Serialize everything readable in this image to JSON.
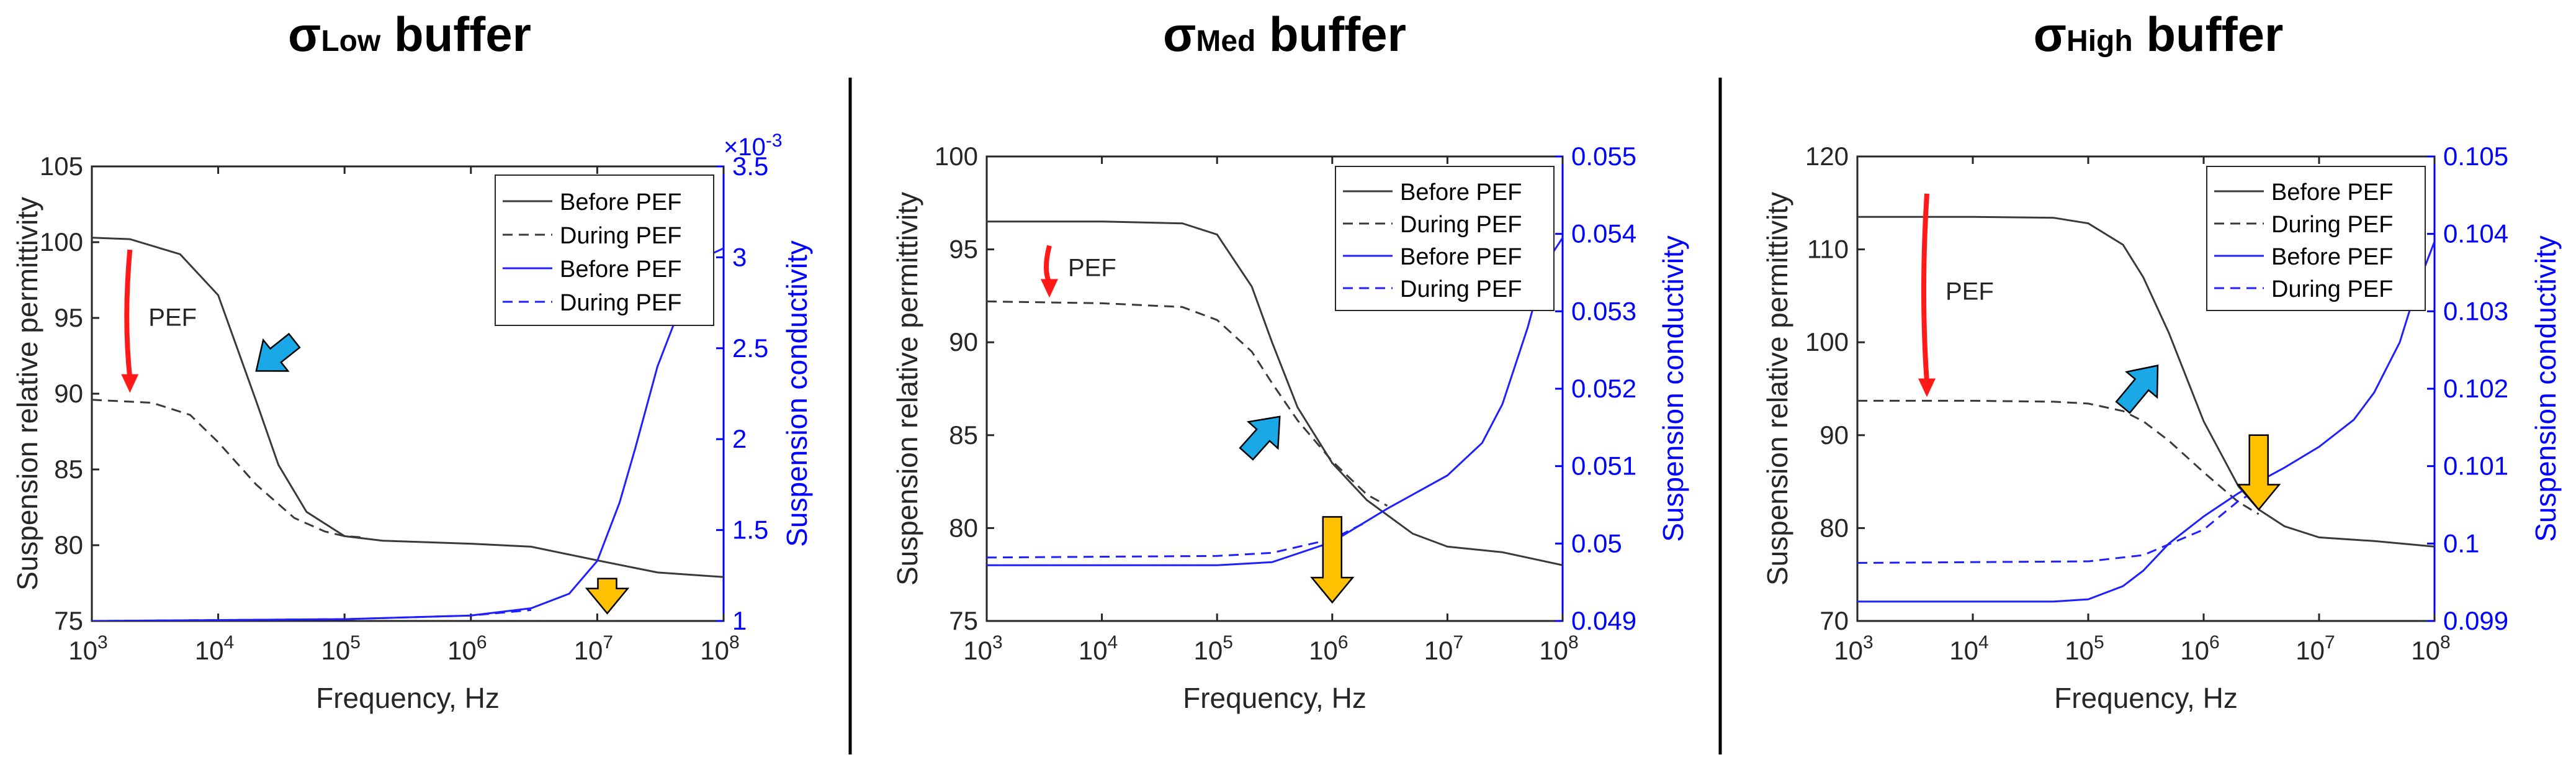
{
  "colors": {
    "before": "#3a3a3a",
    "during": "#3a3a3a",
    "cond": "#1f1fff",
    "red_arrow": "#ff1a1a",
    "blue_arrow": "#1aa8e6",
    "yellow_arrow": "#ffc000",
    "axis_right": "#0000ff"
  },
  "chart_data": [
    {
      "type": "line",
      "title": "σLow buffer",
      "title_sym": "σ",
      "title_sub": "Low",
      "title_word": "buffer",
      "xscale": "log",
      "xlim": [
        1000,
        100000000
      ],
      "xticks": [
        {
          "v": 1000,
          "b": "10",
          "e": "3"
        },
        {
          "v": 10000,
          "b": "10",
          "e": "4"
        },
        {
          "v": 100000,
          "b": "10",
          "e": "5"
        },
        {
          "v": 1000000,
          "b": "10",
          "e": "6"
        },
        {
          "v": 10000000,
          "b": "10",
          "e": "7"
        },
        {
          "v": 100000000,
          "b": "10",
          "e": "8"
        }
      ],
      "xlabel": "Frequency, Hz",
      "ylabel": "Suspension relative permittivity",
      "ylim": [
        75,
        105
      ],
      "yticks": [
        {
          "v": 75,
          "t": "75"
        },
        {
          "v": 80,
          "t": "80"
        },
        {
          "v": 85,
          "t": "85"
        },
        {
          "v": 90,
          "t": "90"
        },
        {
          "v": 95,
          "t": "95"
        },
        {
          "v": 100,
          "t": "100"
        },
        {
          "v": 105,
          "t": "105"
        }
      ],
      "y2label": "Suspension conductivity",
      "y2lim": [
        1,
        3.5
      ],
      "y2ticks": [
        {
          "v": 1,
          "t": "1"
        },
        {
          "v": 1.5,
          "t": "1.5"
        },
        {
          "v": 2,
          "t": "2"
        },
        {
          "v": 2.5,
          "t": "2.5"
        },
        {
          "v": 3,
          "t": "3"
        },
        {
          "v": 3.5,
          "t": "3.5"
        }
      ],
      "y2_multiplier": {
        "base": "×10",
        "exp": "-3"
      },
      "legend_position": "top-right",
      "legend": [
        "Before PEF",
        "During PEF",
        "Before PEF",
        "During PEF"
      ],
      "series": [
        {
          "name": "Before PEF",
          "axis": "left",
          "style": "solid",
          "x": [
            1000,
            2000,
            5000,
            10000,
            20000,
            30000,
            50000,
            100000,
            200000,
            1000000,
            3000000,
            10000000,
            30000000,
            100000000
          ],
          "y": [
            100.3,
            100.2,
            99.2,
            96.5,
            89.5,
            85.3,
            82.2,
            80.6,
            80.3,
            80.1,
            79.9,
            79.0,
            78.2,
            77.9
          ]
        },
        {
          "name": "During PEF",
          "axis": "left",
          "style": "dashed",
          "x": [
            1000,
            3000,
            6000,
            10000,
            20000,
            40000,
            70000,
            100000,
            150000
          ],
          "y": [
            89.6,
            89.4,
            88.6,
            86.8,
            84.0,
            81.8,
            80.9,
            80.6,
            80.5
          ]
        },
        {
          "name": "Before PEF",
          "axis": "right",
          "style": "solid",
          "x": [
            1000,
            100000,
            1000000,
            3000000,
            6000000,
            10000000,
            15000000,
            20000000,
            30000000,
            50000000,
            70000000,
            100000000
          ],
          "y": [
            1.0,
            1.01,
            1.03,
            1.07,
            1.15,
            1.33,
            1.65,
            1.95,
            2.4,
            2.8,
            3.0,
            3.05
          ]
        },
        {
          "name": "During PEF",
          "axis": "right",
          "style": "dashed",
          "x": [
            1000,
            100000,
            1000000,
            3000000
          ],
          "y": [
            1.0,
            1.01,
            1.03,
            1.06
          ]
        }
      ],
      "annotations": [
        {
          "type": "red-arrow",
          "label": "PEF",
          "from": [
            2000,
            99.5
          ],
          "to": [
            2000,
            90.3
          ]
        },
        {
          "type": "blue-arrow",
          "from": [
            40000,
            93.5
          ],
          "to": [
            20000,
            91.5
          ]
        },
        {
          "type": "yellow-arrow",
          "from": [
            12000000,
            77.8
          ],
          "to": [
            12000000,
            75.5
          ]
        }
      ]
    },
    {
      "type": "line",
      "title": "σMed buffer",
      "title_sym": "σ",
      "title_sub": "Med",
      "title_word": "buffer",
      "xscale": "log",
      "xlim": [
        1000,
        100000000
      ],
      "xticks": [
        {
          "v": 1000,
          "b": "10",
          "e": "3"
        },
        {
          "v": 10000,
          "b": "10",
          "e": "4"
        },
        {
          "v": 100000,
          "b": "10",
          "e": "5"
        },
        {
          "v": 1000000,
          "b": "10",
          "e": "6"
        },
        {
          "v": 10000000,
          "b": "10",
          "e": "7"
        },
        {
          "v": 100000000,
          "b": "10",
          "e": "8"
        }
      ],
      "xlabel": "Frequency, Hz",
      "ylabel": "Suspension relative permittivity",
      "ylim": [
        75,
        100
      ],
      "yticks": [
        {
          "v": 75,
          "t": "75"
        },
        {
          "v": 80,
          "t": "80"
        },
        {
          "v": 85,
          "t": "85"
        },
        {
          "v": 90,
          "t": "90"
        },
        {
          "v": 95,
          "t": "95"
        },
        {
          "v": 100,
          "t": "100"
        }
      ],
      "y2label": "Suspension conductivity",
      "y2lim": [
        0.049,
        0.055
      ],
      "y2ticks": [
        {
          "v": 0.049,
          "t": "0.049"
        },
        {
          "v": 0.05,
          "t": "0.05"
        },
        {
          "v": 0.051,
          "t": "0.051"
        },
        {
          "v": 0.052,
          "t": "0.052"
        },
        {
          "v": 0.053,
          "t": "0.053"
        },
        {
          "v": 0.054,
          "t": "0.054"
        },
        {
          "v": 0.055,
          "t": "0.055"
        }
      ],
      "legend_position": "top-right",
      "legend": [
        "Before PEF",
        "During PEF",
        "Before PEF",
        "During PEF"
      ],
      "series": [
        {
          "name": "Before PEF",
          "axis": "left",
          "style": "solid",
          "x": [
            1000,
            10000,
            50000,
            100000,
            200000,
            300000,
            500000,
            1000000,
            2000000,
            5000000,
            10000000,
            30000000,
            100000000
          ],
          "y": [
            96.5,
            96.5,
            96.4,
            95.8,
            93.0,
            90.0,
            86.5,
            83.5,
            81.5,
            79.7,
            79.0,
            78.7,
            78.0
          ]
        },
        {
          "name": "During PEF",
          "axis": "left",
          "style": "dashed",
          "x": [
            1000,
            10000,
            50000,
            100000,
            200000,
            300000,
            500000,
            1000000,
            2000000,
            3000000
          ],
          "y": [
            92.2,
            92.1,
            91.9,
            91.2,
            89.5,
            87.8,
            85.8,
            83.6,
            81.8,
            81.2
          ]
        },
        {
          "name": "Before PEF",
          "axis": "right",
          "style": "solid",
          "x": [
            1000,
            100000,
            300000,
            1000000,
            3000000,
            10000000,
            20000000,
            30000000,
            50000000,
            70000000,
            100000000
          ],
          "y": [
            0.04972,
            0.04972,
            0.04976,
            0.05002,
            0.05045,
            0.05088,
            0.0513,
            0.0518,
            0.0528,
            0.0536,
            0.05395
          ]
        },
        {
          "name": "During PEF",
          "axis": "right",
          "style": "dashed",
          "x": [
            1000,
            100000,
            300000,
            1000000,
            2000000
          ],
          "y": [
            0.04982,
            0.04984,
            0.04988,
            0.05006,
            0.05028
          ]
        }
      ],
      "annotations": [
        {
          "type": "red-arrow",
          "label": "PEF",
          "from": [
            3500,
            95.2
          ],
          "to": [
            3500,
            92.6
          ]
        },
        {
          "type": "blue-arrow",
          "from": [
            180000,
            84.0
          ],
          "to": [
            350000,
            86.0
          ]
        },
        {
          "type": "yellow-arrow",
          "from": [
            1000000,
            80.6
          ],
          "to": [
            1000000,
            76.0
          ]
        }
      ]
    },
    {
      "type": "line",
      "title": "σHigh buffer",
      "title_sym": "σ",
      "title_sub": "High",
      "title_word": "buffer",
      "xscale": "log",
      "xlim": [
        1000,
        100000000
      ],
      "xticks": [
        {
          "v": 1000,
          "b": "10",
          "e": "3"
        },
        {
          "v": 10000,
          "b": "10",
          "e": "4"
        },
        {
          "v": 100000,
          "b": "10",
          "e": "5"
        },
        {
          "v": 1000000,
          "b": "10",
          "e": "6"
        },
        {
          "v": 10000000,
          "b": "10",
          "e": "7"
        },
        {
          "v": 100000000,
          "b": "10",
          "e": "8"
        }
      ],
      "xlabel": "Frequency, Hz",
      "ylabel": "Suspension relative permittivity",
      "ylim": [
        70,
        120
      ],
      "yticks": [
        {
          "v": 70,
          "t": "70"
        },
        {
          "v": 80,
          "t": "80"
        },
        {
          "v": 90,
          "t": "90"
        },
        {
          "v": 100,
          "t": "100"
        },
        {
          "v": 110,
          "t": "110"
        },
        {
          "v": 120,
          "t": "120"
        }
      ],
      "y2label": "Suspension conductivity",
      "y2lim": [
        0.099,
        0.105
      ],
      "y2ticks": [
        {
          "v": 0.099,
          "t": "0.099"
        },
        {
          "v": 0.1,
          "t": "0.1"
        },
        {
          "v": 0.101,
          "t": "0.101"
        },
        {
          "v": 0.102,
          "t": "0.102"
        },
        {
          "v": 0.103,
          "t": "0.103"
        },
        {
          "v": 0.104,
          "t": "0.104"
        },
        {
          "v": 0.105,
          "t": "0.105"
        }
      ],
      "legend_position": "top-right",
      "legend": [
        "Before PEF",
        "During PEF",
        "Before PEF",
        "During PEF"
      ],
      "series": [
        {
          "name": "Before PEF",
          "axis": "left",
          "style": "solid",
          "x": [
            1000,
            10000,
            50000,
            100000,
            200000,
            300000,
            500000,
            1000000,
            2000000,
            3000000,
            5000000,
            10000000,
            30000000,
            100000000
          ],
          "y": [
            113.5,
            113.5,
            113.4,
            112.8,
            110.5,
            107.0,
            101.0,
            91.5,
            84.5,
            82.0,
            80.2,
            79.0,
            78.6,
            78.0
          ]
        },
        {
          "name": "During PEF",
          "axis": "left",
          "style": "dashed",
          "x": [
            1000,
            10000,
            50000,
            100000,
            200000,
            300000,
            500000,
            1000000,
            2000000,
            3000000
          ],
          "y": [
            93.7,
            93.7,
            93.6,
            93.4,
            92.6,
            91.5,
            89.4,
            86.0,
            82.8,
            81.5
          ]
        },
        {
          "name": "Before PEF",
          "axis": "right",
          "style": "solid",
          "x": [
            1000,
            50000,
            100000,
            200000,
            300000,
            500000,
            1000000,
            2000000,
            3000000,
            5000000,
            10000000,
            20000000,
            30000000,
            50000000,
            70000000,
            100000000
          ],
          "y": [
            0.09925,
            0.09925,
            0.09928,
            0.09945,
            0.09965,
            0.1,
            0.10035,
            0.10065,
            0.1008,
            0.10098,
            0.10125,
            0.1016,
            0.10195,
            0.1026,
            0.1033,
            0.1039
          ]
        },
        {
          "name": "During PEF",
          "axis": "right",
          "style": "dashed",
          "x": [
            1000,
            100000,
            300000,
            1000000,
            2000000,
            3000000
          ],
          "y": [
            0.09975,
            0.09977,
            0.09985,
            0.10018,
            0.10055,
            0.1007
          ]
        }
      ],
      "annotations": [
        {
          "type": "red-arrow",
          "label": "PEF",
          "from": [
            4000,
            116
          ],
          "to": [
            4000,
            94.5
          ]
        },
        {
          "type": "blue-arrow",
          "from": [
            200000,
            93.0
          ],
          "to": [
            400000,
            97.5
          ]
        },
        {
          "type": "yellow-arrow",
          "from": [
            3000000,
            90.0
          ],
          "to": [
            3000000,
            82.0
          ]
        }
      ]
    }
  ]
}
